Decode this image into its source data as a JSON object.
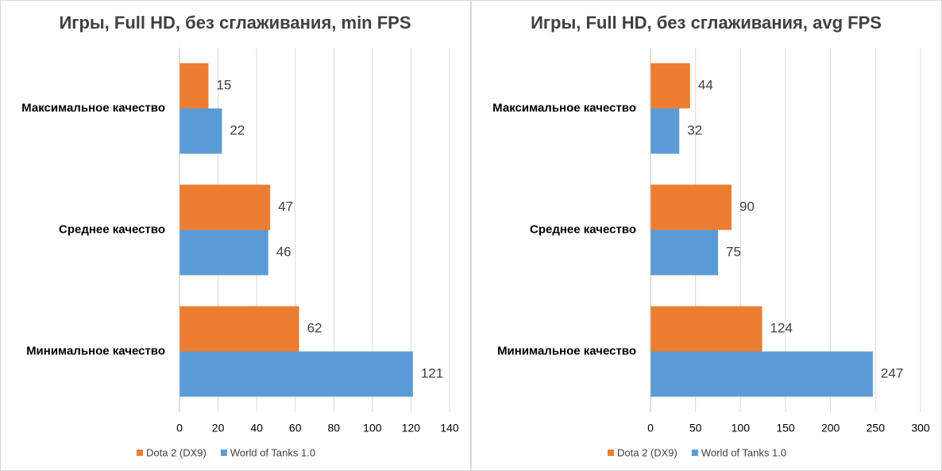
{
  "chart_data": [
    {
      "type": "bar",
      "orientation": "horizontal",
      "title": "Игры, Full HD, без сглаживания, min FPS",
      "categories": [
        "Максимальное качество",
        "Среднее качество",
        "Минимальное качество"
      ],
      "series": [
        {
          "name": "Dota 2 (DX9)",
          "color": "#ed7d31",
          "values": [
            15,
            47,
            62
          ]
        },
        {
          "name": "World of Tanks 1.0",
          "color": "#5b9bd5",
          "values": [
            22,
            46,
            121
          ]
        }
      ],
      "xlim": [
        0,
        140
      ],
      "xticks": [
        0,
        20,
        40,
        60,
        80,
        100,
        120,
        140
      ],
      "grid": true,
      "legend": "bottom"
    },
    {
      "type": "bar",
      "orientation": "horizontal",
      "title": "Игры, Full HD, без сглаживания, avg FPS",
      "categories": [
        "Максимальное качество",
        "Среднее качество",
        "Минимальное качество"
      ],
      "series": [
        {
          "name": "Dota 2 (DX9)",
          "color": "#ed7d31",
          "values": [
            44,
            90,
            124
          ]
        },
        {
          "name": "World of Tanks 1.0",
          "color": "#5b9bd5",
          "values": [
            32,
            75,
            247
          ]
        }
      ],
      "xlim": [
        0,
        300
      ],
      "xticks": [
        0,
        50,
        100,
        150,
        200,
        250,
        300
      ],
      "grid": true,
      "legend": "bottom"
    }
  ]
}
